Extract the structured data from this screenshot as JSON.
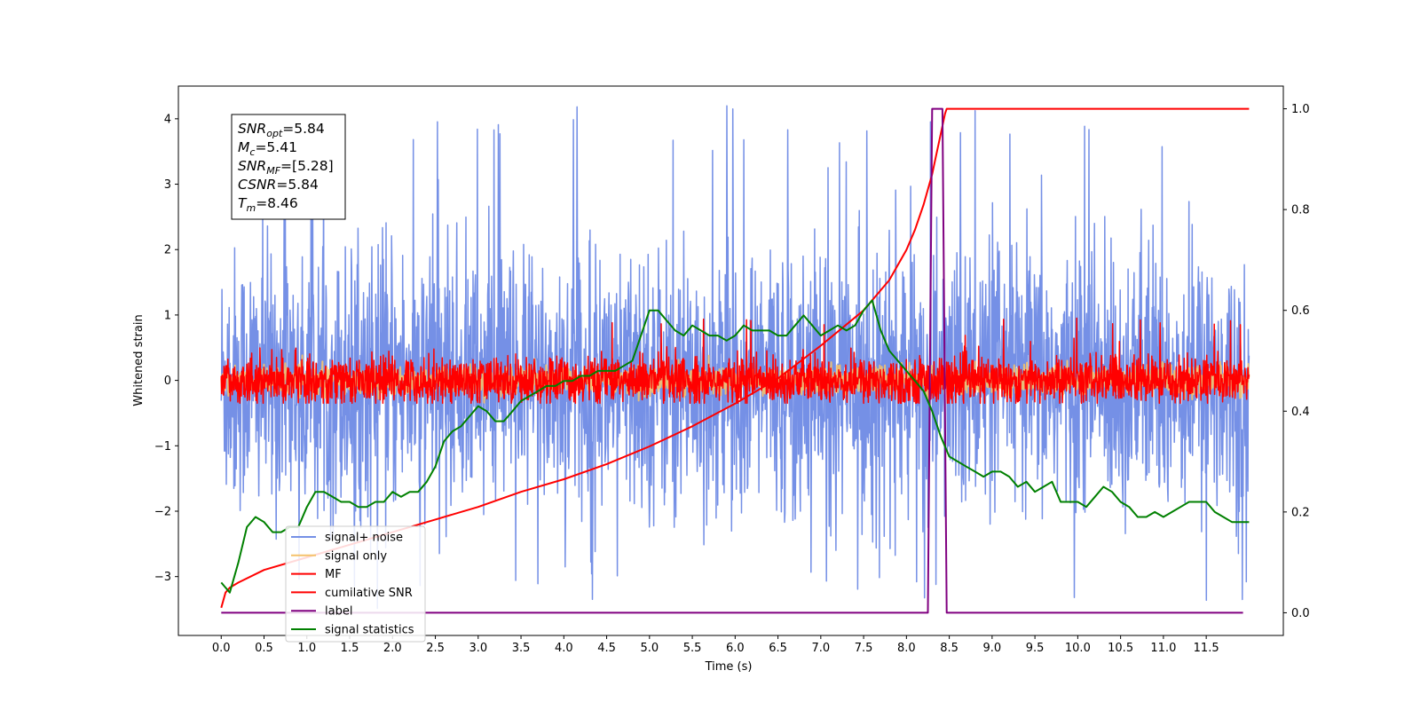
{
  "chart_data": {
    "type": "line",
    "xlabel": "Time (s)",
    "ylabel_left": "Whitened strain",
    "ylabel_right": "",
    "xlim": [
      -0.5,
      12.4
    ],
    "ylim_left": [
      -3.9,
      4.5
    ],
    "ylim_right": [
      -0.045,
      1.045
    ],
    "x_ticks": [
      0.0,
      0.5,
      1.0,
      1.5,
      2.0,
      2.5,
      3.0,
      3.5,
      4.0,
      4.5,
      5.0,
      5.5,
      6.0,
      6.5,
      7.0,
      7.5,
      8.0,
      8.5,
      9.0,
      9.5,
      10.0,
      10.5,
      11.0,
      11.5
    ],
    "x_tick_labels": [
      "0.0",
      "0.5",
      "1.0",
      "1.5",
      "2.0",
      "2.5",
      "3.0",
      "3.5",
      "4.0",
      "4.5",
      "5.0",
      "5.5",
      "6.0",
      "6.5",
      "7.0",
      "7.5",
      "8.0",
      "8.5",
      "9.0",
      "9.5",
      "10.0",
      "10.5",
      "11.0",
      "11.5"
    ],
    "y_left_ticks": [
      -3,
      -2,
      -1,
      0,
      1,
      2,
      3,
      4
    ],
    "y_left_tick_labels": [
      "−3",
      "−2",
      "−1",
      "0",
      "1",
      "2",
      "3",
      "4"
    ],
    "y_right_ticks": [
      0.0,
      0.2,
      0.4,
      0.6,
      0.8,
      1.0
    ],
    "y_right_tick_labels": [
      "0.0",
      "0.2",
      "0.4",
      "0.6",
      "0.8",
      "1.0"
    ],
    "grid": false,
    "legend_position": "lower-left",
    "annotation": [
      {
        "base": "SNR",
        "sub": "opt",
        "value": "=5.84"
      },
      {
        "base": "M",
        "sub": "c",
        "value": "=5.41"
      },
      {
        "base": "SNR",
        "sub": "MF",
        "value": "=[5.28]"
      },
      {
        "base": "CSNR",
        "sub": "",
        "value": "=5.84"
      },
      {
        "base": "T",
        "sub": "m",
        "value": "=8.46"
      }
    ],
    "series": [
      {
        "name": "signal+ noise",
        "color": "#7590e6",
        "axis": "left",
        "kind": "noise",
        "x_range": [
          0.0,
          12.0
        ],
        "envelope_approx": [
          -3.5,
          4.2
        ],
        "typical_amplitude": 1.0
      },
      {
        "name": "signal only",
        "color": "#f5c26b",
        "axis": "left",
        "kind": "small",
        "note_hidden": true,
        "x_range": [
          0.0,
          12.0
        ],
        "typical_amplitude": 0.1
      },
      {
        "name": "MF",
        "color": "#ff0000",
        "axis": "left",
        "kind": "noise",
        "x_range": [
          0.0,
          12.0
        ],
        "envelope_approx": [
          -0.35,
          1.0
        ],
        "typical_amplitude": 0.18
      },
      {
        "name": "cumilative SNR",
        "color": "#ff0000",
        "axis": "right",
        "kind": "curve",
        "x": [
          0.0,
          0.05,
          0.1,
          0.2,
          0.5,
          1.0,
          1.5,
          2.0,
          2.5,
          3.0,
          3.5,
          4.0,
          4.5,
          5.0,
          5.5,
          6.0,
          6.5,
          7.0,
          7.5,
          7.8,
          8.0,
          8.1,
          8.2,
          8.3,
          8.35,
          8.4,
          8.45,
          8.47,
          8.5,
          9.0,
          10.0,
          11.0,
          11.5,
          12.0
        ],
        "y": [
          0.01,
          0.04,
          0.05,
          0.06,
          0.085,
          0.11,
          0.135,
          0.16,
          0.185,
          0.21,
          0.24,
          0.265,
          0.295,
          0.33,
          0.37,
          0.415,
          0.465,
          0.53,
          0.6,
          0.66,
          0.72,
          0.76,
          0.81,
          0.87,
          0.91,
          0.95,
          0.99,
          1.0,
          1.0,
          1.0,
          1.0,
          1.0,
          1.0,
          1.0
        ]
      },
      {
        "name": "label",
        "color": "#800080",
        "axis": "right",
        "kind": "curve",
        "x": [
          0.0,
          8.25,
          8.3,
          8.42,
          8.47,
          11.93
        ],
        "y": [
          0.0,
          0.0,
          1.0,
          1.0,
          0.0,
          0.0
        ]
      },
      {
        "name": "signal statistics",
        "color": "#008000",
        "axis": "right",
        "kind": "curve",
        "x": [
          0.0,
          0.1,
          0.2,
          0.3,
          0.4,
          0.5,
          0.6,
          0.7,
          0.8,
          0.9,
          1.0,
          1.1,
          1.2,
          1.3,
          1.4,
          1.5,
          1.6,
          1.7,
          1.8,
          1.9,
          2.0,
          2.1,
          2.2,
          2.3,
          2.4,
          2.5,
          2.6,
          2.7,
          2.8,
          2.9,
          3.0,
          3.1,
          3.2,
          3.3,
          3.4,
          3.5,
          3.6,
          3.7,
          3.8,
          3.9,
          4.0,
          4.1,
          4.2,
          4.3,
          4.4,
          4.5,
          4.6,
          4.7,
          4.8,
          4.9,
          5.0,
          5.1,
          5.2,
          5.3,
          5.4,
          5.5,
          5.6,
          5.7,
          5.8,
          5.9,
          6.0,
          6.1,
          6.2,
          6.3,
          6.4,
          6.5,
          6.6,
          6.7,
          6.8,
          6.9,
          7.0,
          7.1,
          7.2,
          7.3,
          7.4,
          7.5,
          7.6,
          7.7,
          7.8,
          7.9,
          8.0,
          8.1,
          8.2,
          8.3,
          8.4,
          8.5,
          8.6,
          8.7,
          8.8,
          8.9,
          9.0,
          9.1,
          9.2,
          9.3,
          9.4,
          9.5,
          9.6,
          9.7,
          9.8,
          9.9,
          10.0,
          10.1,
          10.2,
          10.3,
          10.4,
          10.5,
          10.6,
          10.7,
          10.8,
          10.9,
          11.0,
          11.1,
          11.2,
          11.3,
          11.4,
          11.5,
          11.6,
          11.7,
          11.8,
          11.9,
          12.0
        ],
        "y": [
          0.06,
          0.04,
          0.1,
          0.17,
          0.19,
          0.18,
          0.16,
          0.16,
          0.17,
          0.17,
          0.21,
          0.24,
          0.24,
          0.23,
          0.22,
          0.22,
          0.21,
          0.21,
          0.22,
          0.22,
          0.24,
          0.23,
          0.24,
          0.24,
          0.26,
          0.29,
          0.34,
          0.36,
          0.37,
          0.39,
          0.41,
          0.4,
          0.38,
          0.38,
          0.4,
          0.42,
          0.43,
          0.44,
          0.45,
          0.45,
          0.46,
          0.46,
          0.47,
          0.47,
          0.48,
          0.48,
          0.48,
          0.49,
          0.5,
          0.55,
          0.6,
          0.6,
          0.58,
          0.56,
          0.55,
          0.57,
          0.56,
          0.55,
          0.55,
          0.54,
          0.55,
          0.57,
          0.56,
          0.56,
          0.56,
          0.55,
          0.55,
          0.57,
          0.59,
          0.57,
          0.55,
          0.56,
          0.57,
          0.56,
          0.57,
          0.6,
          0.62,
          0.56,
          0.52,
          0.5,
          0.48,
          0.46,
          0.44,
          0.4,
          0.35,
          0.31,
          0.3,
          0.29,
          0.28,
          0.27,
          0.28,
          0.28,
          0.27,
          0.25,
          0.26,
          0.24,
          0.25,
          0.26,
          0.22,
          0.22,
          0.22,
          0.21,
          0.23,
          0.25,
          0.24,
          0.22,
          0.21,
          0.19,
          0.19,
          0.2,
          0.19,
          0.2,
          0.21,
          0.22,
          0.22,
          0.22,
          0.2,
          0.19,
          0.18,
          0.18,
          0.18
        ]
      }
    ]
  }
}
